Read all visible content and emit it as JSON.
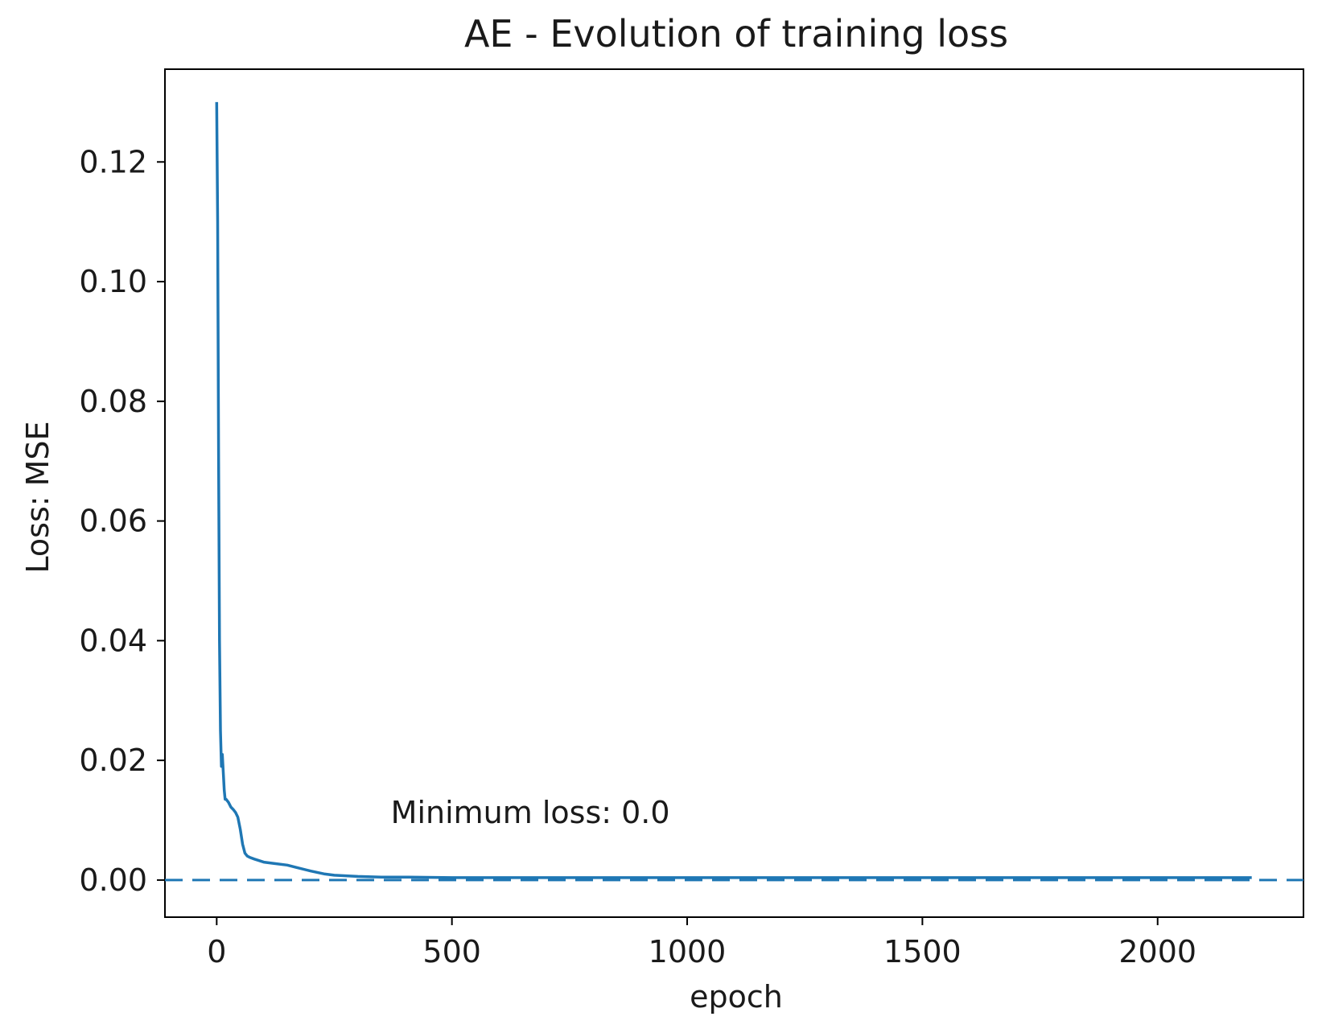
{
  "chart_data": {
    "type": "line",
    "title": "AE - Evolution of training loss",
    "xlabel": "epoch",
    "ylabel": "Loss: MSE",
    "xlim": [
      -110,
      2310
    ],
    "ylim": [
      -0.0062,
      0.1355
    ],
    "xticks": [
      0,
      500,
      1000,
      1500,
      2000
    ],
    "xtick_labels": [
      "0",
      "500",
      "1000",
      "1500",
      "2000"
    ],
    "yticks": [
      0.0,
      0.02,
      0.04,
      0.06,
      0.08,
      0.1,
      0.12
    ],
    "ytick_labels": [
      "0.00",
      "0.02",
      "0.04",
      "0.06",
      "0.08",
      "0.10",
      "0.12"
    ],
    "grid": false,
    "line_color": "#1f77b4",
    "series": [
      {
        "x": [
          0,
          2,
          4,
          6,
          8,
          10,
          12,
          14,
          16,
          18,
          20,
          25,
          30,
          35,
          40,
          45,
          50,
          55,
          60,
          65,
          70,
          80,
          100,
          120,
          150,
          170,
          200,
          230,
          250,
          300,
          350,
          400,
          500,
          600,
          700,
          800,
          900,
          1000,
          1100,
          1200,
          1300,
          1400,
          1500,
          1600,
          1700,
          1800,
          1900,
          2000,
          2100,
          2200
        ],
        "y": [
          0.13,
          0.11,
          0.07,
          0.04,
          0.025,
          0.019,
          0.021,
          0.018,
          0.015,
          0.0135,
          0.0135,
          0.013,
          0.0122,
          0.0118,
          0.0113,
          0.0105,
          0.0085,
          0.006,
          0.0045,
          0.004,
          0.0038,
          0.0035,
          0.003,
          0.0028,
          0.0025,
          0.0021,
          0.0015,
          0.001,
          0.0008,
          0.0006,
          0.0005,
          0.0005,
          0.0004,
          0.0004,
          0.0004,
          0.0004,
          0.0004,
          0.0004,
          0.0004,
          0.0004,
          0.0004,
          0.0004,
          0.0004,
          0.0004,
          0.0004,
          0.0004,
          0.0004,
          0.0004,
          0.0004,
          0.0004
        ]
      }
    ],
    "reference_line": {
      "y": 0.0,
      "style": "dashed"
    },
    "annotation": {
      "text": "Minimum loss: 0.0",
      "x": 370,
      "y": 0.0095
    }
  }
}
